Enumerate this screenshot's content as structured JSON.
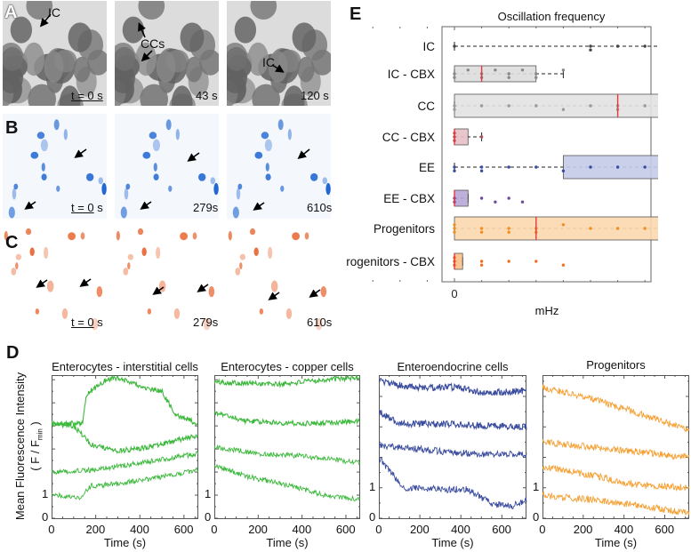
{
  "panels": {
    "A": "A",
    "B": "B",
    "C": "C",
    "D": "D",
    "E": "E"
  },
  "panel_a": {
    "labels": {
      "ic1": "IC",
      "ccs": "CCs",
      "ic2": "IC"
    },
    "times": [
      "t = 0 s",
      "43 s",
      "120 s"
    ],
    "t0_underlined": "t = 0",
    "t0_unit": "s"
  },
  "panel_b": {
    "times": [
      "279s",
      "610s"
    ],
    "t0_underlined": "t = 0",
    "t0_unit": "s"
  },
  "panel_c": {
    "times": [
      "279s",
      "610s"
    ],
    "t0_underlined": "t = 0",
    "t0_unit": "s"
  },
  "colors": {
    "green": "#3cb83c",
    "blue": "#3a4c9e",
    "orange": "#f5a033",
    "median": "#e8383d",
    "ic": "#444444",
    "cc": "#9a9a9a"
  },
  "chart_data": [
    {
      "type": "line",
      "title": "Enterocytes - interstitial cells",
      "xlabel": "Time (s)",
      "ylabel": "Mean Fluorescence Intensity",
      "ylabel2": "( F / F",
      "ylabel2_sub": "min",
      "ylabel2_close": " )",
      "xlim": [
        0,
        665
      ],
      "ylim": [
        0,
        6.2
      ],
      "xticks": [
        "0",
        "200",
        "400",
        "600"
      ],
      "yticks": [
        "0",
        "1"
      ],
      "color": "#3cb83c",
      "series": [
        {
          "name": "trace 1",
          "points": [
            [
              0,
              4.1
            ],
            [
              140,
              4.1
            ],
            [
              160,
              5.4
            ],
            [
              250,
              6.0
            ],
            [
              300,
              6.1
            ],
            [
              400,
              5.7
            ],
            [
              500,
              5.5
            ],
            [
              560,
              4.5
            ],
            [
              665,
              4.1
            ]
          ]
        },
        {
          "name": "trace 2",
          "points": [
            [
              0,
              4.1
            ],
            [
              100,
              4.0
            ],
            [
              180,
              3.2
            ],
            [
              300,
              2.9
            ],
            [
              450,
              3.1
            ],
            [
              665,
              3.6
            ]
          ]
        },
        {
          "name": "trace 3",
          "points": [
            [
              0,
              2.0
            ],
            [
              200,
              2.1
            ],
            [
              400,
              2.4
            ],
            [
              665,
              2.8
            ]
          ]
        },
        {
          "name": "trace 4",
          "points": [
            [
              0,
              1.0
            ],
            [
              130,
              0.9
            ],
            [
              180,
              1.4
            ],
            [
              300,
              1.5
            ],
            [
              450,
              1.7
            ],
            [
              665,
              2.1
            ]
          ]
        }
      ]
    },
    {
      "type": "line",
      "title": "Enterocytes - copper cells",
      "xlabel": "Time (s)",
      "xlim": [
        0,
        665
      ],
      "ylim": [
        0,
        6.2
      ],
      "xticks": [
        "0",
        "200",
        "400",
        "600"
      ],
      "yticks": [
        "0",
        "1"
      ],
      "color": "#3cb83c",
      "series": [
        {
          "name": "trace 1",
          "points": [
            [
              0,
              5.9
            ],
            [
              300,
              5.8
            ],
            [
              500,
              6.0
            ],
            [
              665,
              6.1
            ]
          ]
        },
        {
          "name": "trace 2",
          "points": [
            [
              0,
              4.6
            ],
            [
              150,
              4.2
            ],
            [
              400,
              4.1
            ],
            [
              665,
              4.2
            ]
          ]
        },
        {
          "name": "trace 3",
          "points": [
            [
              0,
              3.1
            ],
            [
              200,
              2.8
            ],
            [
              400,
              2.7
            ],
            [
              665,
              2.4
            ]
          ]
        },
        {
          "name": "trace 4",
          "points": [
            [
              0,
              2.3
            ],
            [
              150,
              1.8
            ],
            [
              350,
              1.4
            ],
            [
              500,
              1.0
            ],
            [
              665,
              0.8
            ]
          ]
        }
      ]
    },
    {
      "type": "line",
      "title": "Enteroendocrine cells",
      "xlabel": "Time (s)",
      "xlim": [
        0,
        720
      ],
      "ylim": [
        0,
        4.7
      ],
      "xticks": [
        "0",
        "200",
        "400",
        "600"
      ],
      "yticks": [
        "0",
        "1"
      ],
      "color": "#3a4c9e",
      "series": [
        {
          "name": "trace 1",
          "points": [
            [
              0,
              4.5
            ],
            [
              150,
              4.3
            ],
            [
              400,
              4.3
            ],
            [
              520,
              4.1
            ],
            [
              720,
              4.2
            ]
          ]
        },
        {
          "name": "trace 2",
          "points": [
            [
              0,
              3.5
            ],
            [
              100,
              3.1
            ],
            [
              300,
              3.1
            ],
            [
              720,
              3.0
            ]
          ]
        },
        {
          "name": "trace 3",
          "points": [
            [
              0,
              2.4
            ],
            [
              300,
              2.2
            ],
            [
              500,
              2.1
            ],
            [
              720,
              2.1
            ]
          ]
        },
        {
          "name": "trace 4",
          "points": [
            [
              0,
              2.0
            ],
            [
              120,
              1.0
            ],
            [
              300,
              0.95
            ],
            [
              430,
              0.95
            ],
            [
              560,
              0.45
            ],
            [
              650,
              0.4
            ],
            [
              720,
              0.6
            ]
          ]
        }
      ]
    },
    {
      "type": "line",
      "title": "Progenitors",
      "xlabel": "Time (s)",
      "xlim": [
        0,
        720
      ],
      "ylim": [
        0,
        4.7
      ],
      "xticks": [
        "0",
        "200",
        "400",
        "600"
      ],
      "yticks": [
        "0",
        "1"
      ],
      "color": "#f5a033",
      "series": [
        {
          "name": "trace 1",
          "points": [
            [
              0,
              4.3
            ],
            [
              200,
              4.0
            ],
            [
              400,
              3.6
            ],
            [
              720,
              2.9
            ]
          ]
        },
        {
          "name": "trace 2",
          "points": [
            [
              0,
              2.5
            ],
            [
              300,
              2.3
            ],
            [
              720,
              2.0
            ]
          ]
        },
        {
          "name": "trace 3",
          "points": [
            [
              0,
              1.7
            ],
            [
              250,
              1.4
            ],
            [
              450,
              1.1
            ],
            [
              720,
              1.0
            ]
          ]
        },
        {
          "name": "trace 4",
          "points": [
            [
              0,
              0.75
            ],
            [
              250,
              0.6
            ],
            [
              500,
              0.4
            ],
            [
              720,
              0.15
            ]
          ]
        }
      ]
    },
    {
      "type": "boxplot",
      "title": "Oscillation frequency",
      "xlabel": "mHz",
      "xlim": [
        -5,
        72
      ],
      "xticks": [
        "0",
        "10",
        "20",
        "30",
        "40",
        "50",
        "60",
        "70"
      ],
      "groups": [
        {
          "name": "IC",
          "color": "#444444",
          "fill": "#cfcfcf",
          "q1": 14,
          "median": 29,
          "q3": 47,
          "whisker": [
            0,
            68
          ],
          "values": [
            0,
            5,
            5,
            6,
            7,
            8,
            9,
            10,
            11,
            12,
            14,
            15,
            17,
            18,
            19,
            22,
            23,
            26,
            27,
            28,
            29,
            30,
            31,
            33,
            36,
            40,
            40,
            45,
            47,
            47,
            48,
            50,
            51,
            58,
            58,
            62,
            65,
            68
          ],
          "outliers": []
        },
        {
          "name": "IC - CBX",
          "color": "#888888",
          "fill": "#dddddd",
          "q1": 0,
          "median": 1,
          "q3": 3,
          "whisker": [
            0,
            4
          ],
          "values": [
            0,
            0,
            0.5,
            1,
            1,
            1.5,
            2,
            2,
            2.5,
            3,
            3,
            4
          ],
          "outliers": [
            8,
            10,
            11,
            17,
            18,
            20,
            24
          ]
        },
        {
          "name": "CC",
          "color": "#9a9a9a",
          "fill": "#e3e3e3",
          "q1": 0,
          "median": 6,
          "q3": 13,
          "whisker": [
            0,
            32
          ],
          "values": [
            0,
            0,
            1,
            2,
            3,
            4,
            5,
            6,
            6,
            7,
            8,
            9,
            10,
            11,
            12,
            13,
            14,
            15,
            17,
            19,
            22,
            24,
            32
          ],
          "outliers": [
            37,
            48
          ]
        },
        {
          "name": "CC - CBX",
          "color": "#b05060",
          "fill": "#e6c0c6",
          "q1": 0,
          "median": 0,
          "q3": 0.5,
          "whisker": [
            0,
            1
          ],
          "values": [
            0,
            0,
            0,
            1
          ],
          "outliers": []
        },
        {
          "name": "EE",
          "color": "#3a4c9e",
          "fill": "#c6cbe8",
          "q1": 4,
          "median": 11,
          "q3": 23,
          "whisker": [
            0,
            38
          ],
          "values": [
            0,
            0,
            1,
            1,
            2,
            3,
            4,
            5,
            6,
            7,
            8,
            10,
            11,
            13,
            14,
            17,
            21,
            23,
            26,
            27,
            28,
            29,
            30,
            32,
            34,
            38
          ],
          "outliers": []
        },
        {
          "name": "EE - CBX",
          "color": "#6a4c9e",
          "fill": "#b9a8d8",
          "q1": 0,
          "median": 0,
          "q3": 0.5,
          "whisker": [
            0,
            0.5
          ],
          "values": [
            0,
            0,
            1,
            1.5,
            2,
            2.5
          ],
          "outliers": [
            36
          ]
        },
        {
          "name": "Progenitors",
          "color": "#f09020",
          "fill": "#fbd9b0",
          "q1": 0,
          "median": 3,
          "q3": 11,
          "whisker": [
            0,
            21
          ],
          "values": [
            0,
            0,
            0,
            1,
            1,
            2,
            2,
            3,
            3,
            4,
            5,
            6,
            7,
            8,
            10,
            11,
            12,
            13,
            14,
            15,
            16,
            17,
            19,
            21
          ],
          "outliers": []
        },
        {
          "name": "Progenitors - CBX",
          "color": "#f07020",
          "fill": "#fbc08a",
          "q1": 0,
          "median": 0,
          "q3": 0.3,
          "whisker": [
            0,
            0.3
          ],
          "values": [
            0,
            0,
            0,
            1,
            1,
            2,
            3,
            4
          ],
          "outliers": []
        }
      ]
    }
  ]
}
